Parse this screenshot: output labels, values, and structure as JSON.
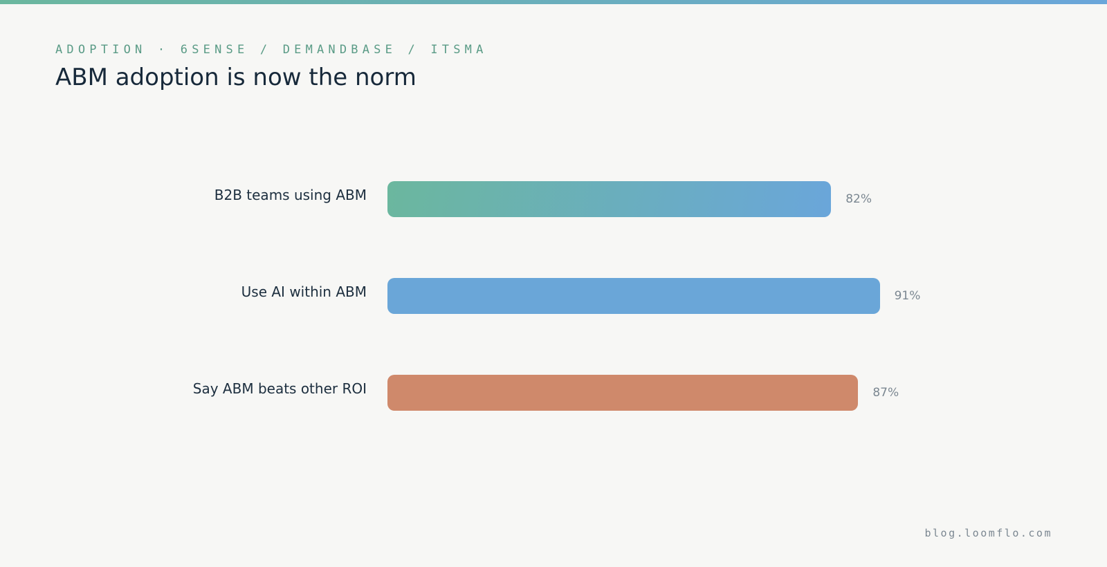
{
  "header": {
    "kicker": "ADOPTION · 6SENSE / DEMANDBASE / ITSMA",
    "title": "ABM adoption is now the norm"
  },
  "footer": {
    "source": "blog.loomflo.com"
  },
  "colors": {
    "background": "#f7f7f5",
    "accent_start": "#6bb79e",
    "accent_end": "#6aa6da",
    "text_dark": "#1c2e3e",
    "text_muted": "#7b8791"
  },
  "chart_data": {
    "type": "bar",
    "orientation": "horizontal",
    "categories": [
      "B2B teams using ABM",
      "Use AI within ABM",
      "Say ABM beats other ROI"
    ],
    "values": [
      82,
      91,
      87
    ],
    "value_labels": [
      "82%",
      "91%",
      "87%"
    ],
    "unit": "%",
    "xlim": [
      0,
      100
    ],
    "grid": false,
    "bar_colors": [
      "gradient:#6bb79e-#6aa6da",
      "#6aa6d8",
      "#cf896b"
    ],
    "title": "ABM adoption is now the norm",
    "xlabel": "",
    "ylabel": ""
  }
}
